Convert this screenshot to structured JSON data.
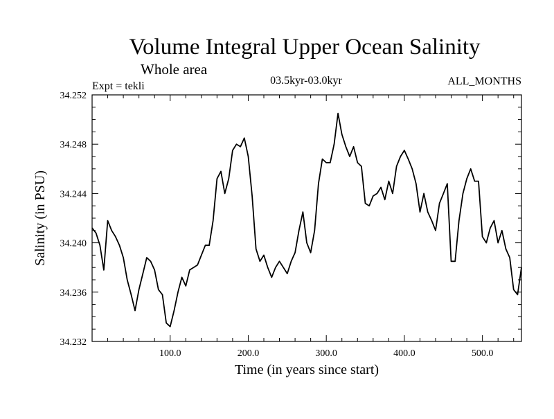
{
  "chart_data": {
    "type": "line",
    "title": "Volume Integral Upper Ocean Salinity",
    "subtitle": "Whole area",
    "left_label": "Expt = tekli",
    "center_label": "03.5kyr-03.0kyr",
    "right_label": "ALL_MONTHS",
    "xlabel": "Time (in years since start)",
    "ylabel": "Salinity (in PSU)",
    "xlim": [
      0,
      550
    ],
    "ylim": [
      34.232,
      34.252
    ],
    "x_ticks": [
      100,
      200,
      300,
      400,
      500
    ],
    "x_tick_labels": [
      "100.0",
      "200.0",
      "300.0",
      "400.0",
      "500.0"
    ],
    "y_ticks": [
      34.232,
      34.236,
      34.24,
      34.244,
      34.248,
      34.252
    ],
    "y_tick_labels": [
      "34.232",
      "34.236",
      "34.240",
      "34.244",
      "34.248",
      "34.252"
    ],
    "series": [
      {
        "name": "salinity",
        "x": [
          0,
          5,
          10,
          15,
          20,
          25,
          30,
          35,
          40,
          45,
          50,
          55,
          60,
          65,
          70,
          75,
          80,
          85,
          90,
          95,
          100,
          105,
          110,
          115,
          120,
          125,
          130,
          135,
          140,
          145,
          150,
          155,
          160,
          165,
          170,
          175,
          180,
          185,
          190,
          195,
          200,
          205,
          210,
          215,
          220,
          225,
          230,
          235,
          240,
          245,
          250,
          255,
          260,
          265,
          270,
          275,
          280,
          285,
          290,
          295,
          300,
          305,
          310,
          315,
          320,
          325,
          330,
          335,
          340,
          345,
          350,
          355,
          360,
          365,
          370,
          375,
          380,
          385,
          390,
          395,
          400,
          405,
          410,
          415,
          420,
          425,
          430,
          435,
          440,
          445,
          450,
          455,
          460,
          465,
          470,
          475,
          480,
          485,
          490,
          495,
          500,
          505,
          510,
          515,
          520,
          525,
          530,
          535,
          540,
          545,
          550
        ],
        "values": [
          34.2412,
          34.2408,
          34.2398,
          34.2378,
          34.2418,
          34.241,
          34.2405,
          34.2398,
          34.2388,
          34.237,
          34.2358,
          34.2345,
          34.2362,
          34.2375,
          34.2388,
          34.2385,
          34.2378,
          34.2362,
          34.2358,
          34.2335,
          34.2332,
          34.2345,
          34.236,
          34.2372,
          34.2365,
          34.2378,
          34.238,
          34.2382,
          34.239,
          34.2398,
          34.2398,
          34.2418,
          34.2452,
          34.2458,
          34.244,
          34.2452,
          34.2475,
          34.248,
          34.2478,
          34.2485,
          34.247,
          34.2438,
          34.2395,
          34.2385,
          34.239,
          34.238,
          34.2372,
          34.238,
          34.2385,
          34.238,
          34.2375,
          34.2385,
          34.2392,
          34.241,
          34.2425,
          34.24,
          34.2392,
          34.241,
          34.2448,
          34.2468,
          34.2465,
          34.2465,
          34.248,
          34.2505,
          34.2488,
          34.2478,
          34.247,
          34.2478,
          34.2465,
          34.2462,
          34.2432,
          34.243,
          34.2438,
          34.244,
          34.2445,
          34.2435,
          34.245,
          34.244,
          34.2462,
          34.247,
          34.2475,
          34.2468,
          34.246,
          34.2448,
          34.2425,
          34.244,
          34.2425,
          34.2418,
          34.241,
          34.2432,
          34.244,
          34.2448,
          34.2385,
          34.2385,
          34.2418,
          34.244,
          34.2452,
          34.246,
          34.245,
          34.245,
          34.2405,
          34.24,
          34.2412,
          34.2418,
          34.24,
          34.241,
          34.2395,
          34.2388,
          34.2362,
          34.2358,
          34.238
        ]
      }
    ]
  }
}
